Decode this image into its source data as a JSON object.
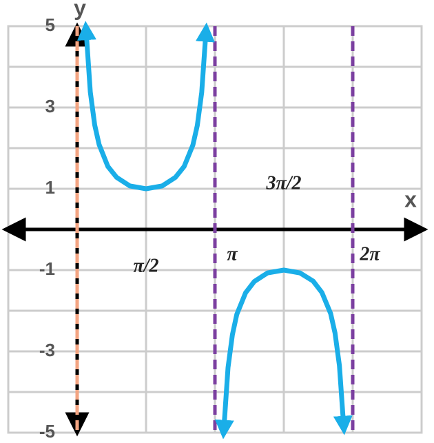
{
  "chart_data": {
    "type": "line",
    "x_label": "x",
    "y_label": "y",
    "xlim": [
      -1.5708,
      7.854
    ],
    "ylim": [
      -5,
      5
    ],
    "xticks": [
      {
        "value": 1.5708,
        "label": "π/2"
      },
      {
        "value": 3.1416,
        "label": "π"
      },
      {
        "value": 4.7124,
        "label": "3π/2"
      },
      {
        "value": 6.2832,
        "label": "2π"
      }
    ],
    "yticks": [
      -5,
      -3,
      -1,
      1,
      3,
      5
    ],
    "ygrid": [
      -5,
      -4,
      -3,
      -2,
      -1,
      0,
      1,
      2,
      3,
      4,
      5
    ],
    "grid": true,
    "asymptotes": [
      {
        "x": 0,
        "color": "#f4a582"
      },
      {
        "x": 3.1416,
        "color": "#7b3fa0"
      },
      {
        "x": 6.2832,
        "color": "#7b3fa0"
      }
    ],
    "series": [
      {
        "color": "#1aaee8",
        "x": [
          0.21,
          0.3,
          0.4,
          0.5,
          0.7,
          0.9,
          1.2,
          1.5708,
          1.94,
          2.24,
          2.44,
          2.64,
          2.74,
          2.84,
          2.93,
          3.1416,
          3.35,
          3.44,
          3.54,
          3.64,
          3.84,
          4.04,
          4.34,
          4.7124,
          5.08,
          5.38,
          5.58,
          5.78,
          5.88,
          5.98,
          6.07
        ],
        "values": [
          4.8,
          3.38,
          2.57,
          2.09,
          1.55,
          1.28,
          1.07,
          1,
          1.07,
          1.28,
          1.55,
          2.08,
          2.56,
          3.37,
          4.76,
          null,
          -4.83,
          -3.4,
          -2.59,
          -2.09,
          -1.56,
          -1.28,
          -1.07,
          -1,
          -1.07,
          -1.27,
          -1.55,
          -2.07,
          -2.55,
          -3.35,
          -4.73
        ]
      }
    ]
  }
}
